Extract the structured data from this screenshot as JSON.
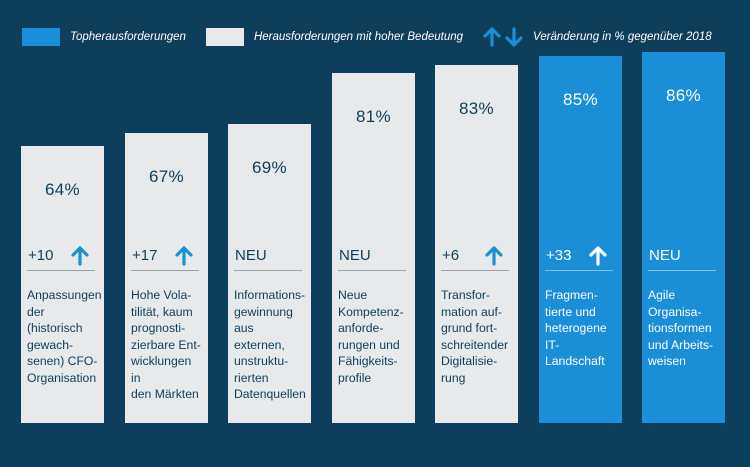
{
  "legend": {
    "top_label": "Topherausforderungen",
    "high_label": "Herausforderungen mit hoher Bedeutung",
    "change_label": "Veränderung in % gegenüber 2018"
  },
  "colors": {
    "background": "#0d3f5c",
    "top": "#1a8fd8",
    "high": "#e8e9ea",
    "arrow": "#1a8fd8",
    "arrow_on_top": "#ffffff"
  },
  "chart_data": {
    "type": "bar",
    "categories": [
      "Anpassungen\nder\n(historisch\ngewach-\nsenen) CFO-\nOrganisation",
      "Hohe Vola-\ntilität, kaum\nprognosti-\nzierbare Ent-\nwicklungen in\nden Märkten",
      "Informations-\ngewinnung\naus externen,\nunstruktu-\nrierten\nDatenquellen",
      "Neue\nKompetenz-\nanforde-\nrungen und\nFähigkeits-\nprofile",
      "Transfor-\nmation auf-\ngrund fort-\nschreitender\nDigitalisie-\nrung",
      "Fragmen-\ntierte und\nheterogene\nIT-Landschaft",
      "Agile\nOrganisa-\ntionsformen\nund Arbeits-\nweisen"
    ],
    "values": [
      64,
      67,
      69,
      81,
      83,
      85,
      86
    ],
    "value_labels": [
      "64%",
      "67%",
      "69%",
      "81%",
      "83%",
      "85%",
      "86%"
    ],
    "changes": [
      "+10",
      "+17",
      "NEU",
      "NEU",
      "+6",
      "+33",
      "NEU"
    ],
    "change_direction": [
      "up",
      "up",
      null,
      null,
      "up",
      "up",
      null
    ],
    "groups": [
      "high",
      "high",
      "high",
      "high",
      "high",
      "top",
      "top"
    ],
    "legend_position": "top-left"
  }
}
